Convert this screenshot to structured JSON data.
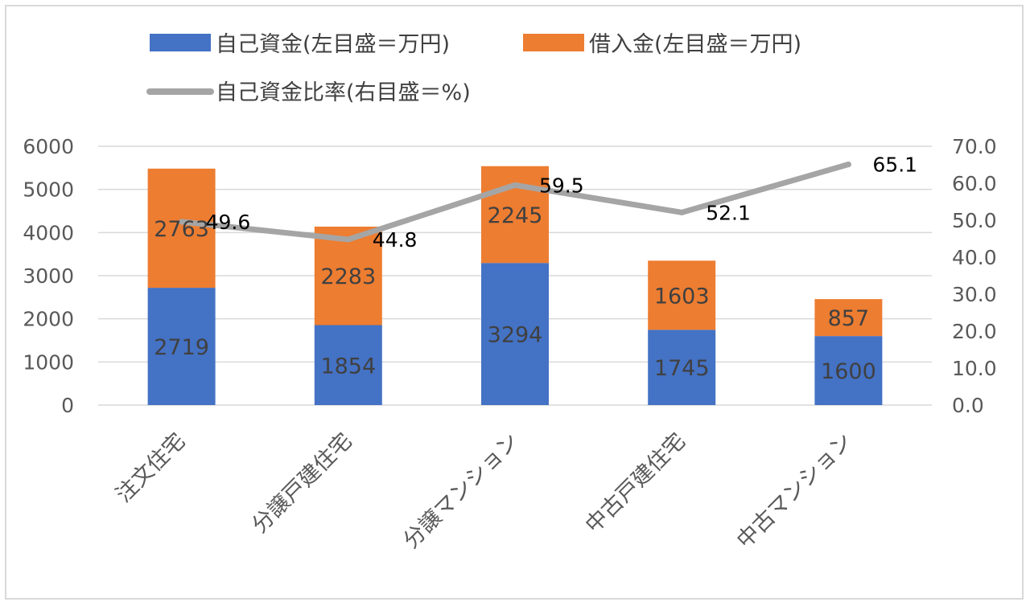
{
  "chart_data": {
    "type": "bar",
    "stacked": true,
    "categories": [
      "注文住宅",
      "分譲戸建住宅",
      "分譲マンション",
      "中古戸建住宅",
      "中古マンション"
    ],
    "series": [
      {
        "name": "自己資金(左目盛＝万円)",
        "type": "bar",
        "axis": "left",
        "color": "#4472c4",
        "values": [
          2719,
          1854,
          3294,
          1745,
          1600
        ]
      },
      {
        "name": "借入金(左目盛＝万円)",
        "type": "bar",
        "axis": "left",
        "color": "#ed7d31",
        "values": [
          2763,
          2283,
          2245,
          1603,
          857
        ]
      },
      {
        "name": "自己資金比率(右目盛＝%)",
        "type": "line",
        "axis": "right",
        "color": "#a5a5a5",
        "values": [
          49.6,
          44.8,
          59.5,
          52.1,
          65.1
        ]
      }
    ],
    "left_axis": {
      "min": 0,
      "max": 6000,
      "step": 1000,
      "tick_labels": [
        "0",
        "1000",
        "2000",
        "3000",
        "4000",
        "5000",
        "6000"
      ]
    },
    "right_axis": {
      "min": 0,
      "max": 70,
      "step": 10,
      "tick_labels": [
        "0.0",
        "10.0",
        "20.0",
        "30.0",
        "40.0",
        "50.0",
        "60.0",
        "70.0"
      ]
    },
    "legend_position": "top",
    "grid": true,
    "title": ""
  }
}
